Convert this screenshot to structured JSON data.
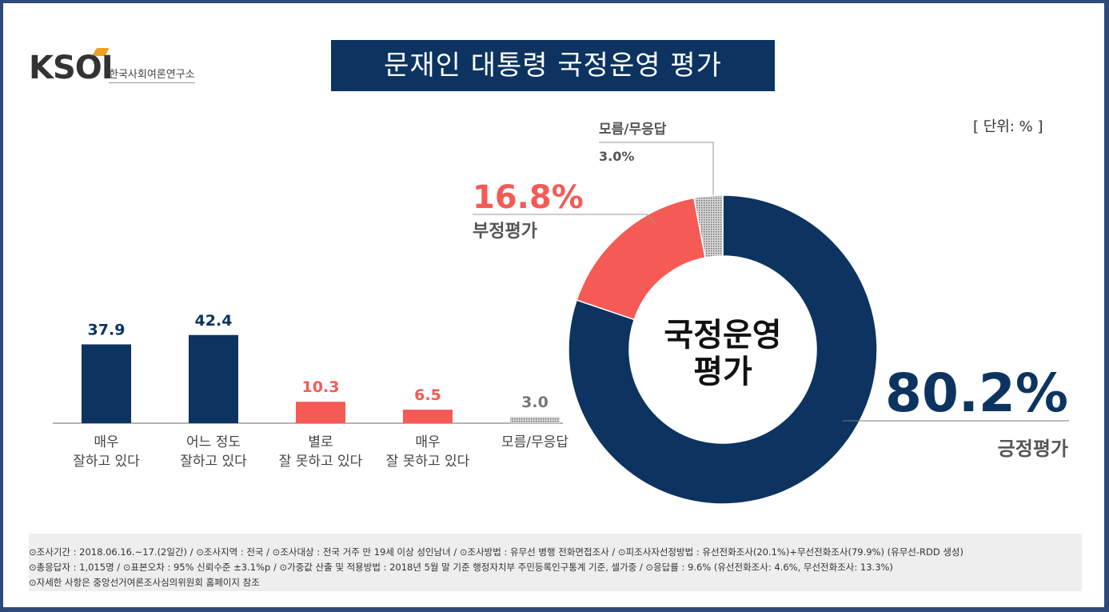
{
  "logo": {
    "wordmark": "KSOI",
    "org_name": "한국사회여론연구소"
  },
  "title": "문재인 대통령 국정운영 평가",
  "unit": "[ 단위: % ]",
  "colors": {
    "navy": "#0d3460",
    "red": "#f55a55",
    "gray": "#a8a8a8",
    "label_gray": "#555555"
  },
  "chart_data": [
    {
      "type": "bar",
      "categories": [
        [
          "매우",
          "잘하고 있다"
        ],
        [
          "어느 정도",
          "잘하고 있다"
        ],
        [
          "별로",
          "잘 못하고 있다"
        ],
        [
          "매우",
          "잘 못하고 있다"
        ],
        [
          "모름/무응답"
        ]
      ],
      "values": [
        37.9,
        42.4,
        10.3,
        6.5,
        3.0
      ],
      "value_labels": [
        "37.9",
        "42.4",
        "10.3",
        "6.5",
        "3.0"
      ],
      "colors": [
        "#0d3460",
        "#0d3460",
        "#f55a55",
        "#f55a55",
        "#a8a8a8"
      ]
    },
    {
      "type": "pie",
      "style": "donut",
      "center_label": [
        "국정운영",
        "평가"
      ],
      "slices": [
        {
          "label": "긍정평가",
          "value": 80.2,
          "value_label": "80.2%",
          "color": "#0d3460"
        },
        {
          "label": "부정평가",
          "value": 16.8,
          "value_label": "16.8%",
          "color": "#f55a55"
        },
        {
          "label": "모름/무응답",
          "value": 3.0,
          "value_label": "3.0%",
          "color": "#a8a8a8"
        }
      ]
    }
  ],
  "footer": {
    "line1": "⊙조사기간 : 2018.06.16.~17.(2일간) / ⊙조사지역 : 전국 / ⊙조사대상 : 전국 거주 만 19세 이상 성인남녀 / ⊙조사방법 : 유무선 병행 전화면접조사 / ⊙피조사자선정방법 : 유선전화조사(20.1%)+무선전화조사(79.9%) (유무선-RDD 생성)",
    "line2": "⊙총응답자 : 1,015명 / ⊙표본오차 : 95% 신뢰수준 ±3.1%p / ⊙가중값 산출 및 적용방법 : 2018년 5월 말 기준 행정자치부 주민등록인구통계 기준, 셀가중 / ⊙응답률 : 9.6% (유선전화조사: 4.6%, 무선전화조사: 13.3%)",
    "line3": "⊙자세한 사항은 중앙선거여론조사심의위원회 홈페이지 참조"
  }
}
